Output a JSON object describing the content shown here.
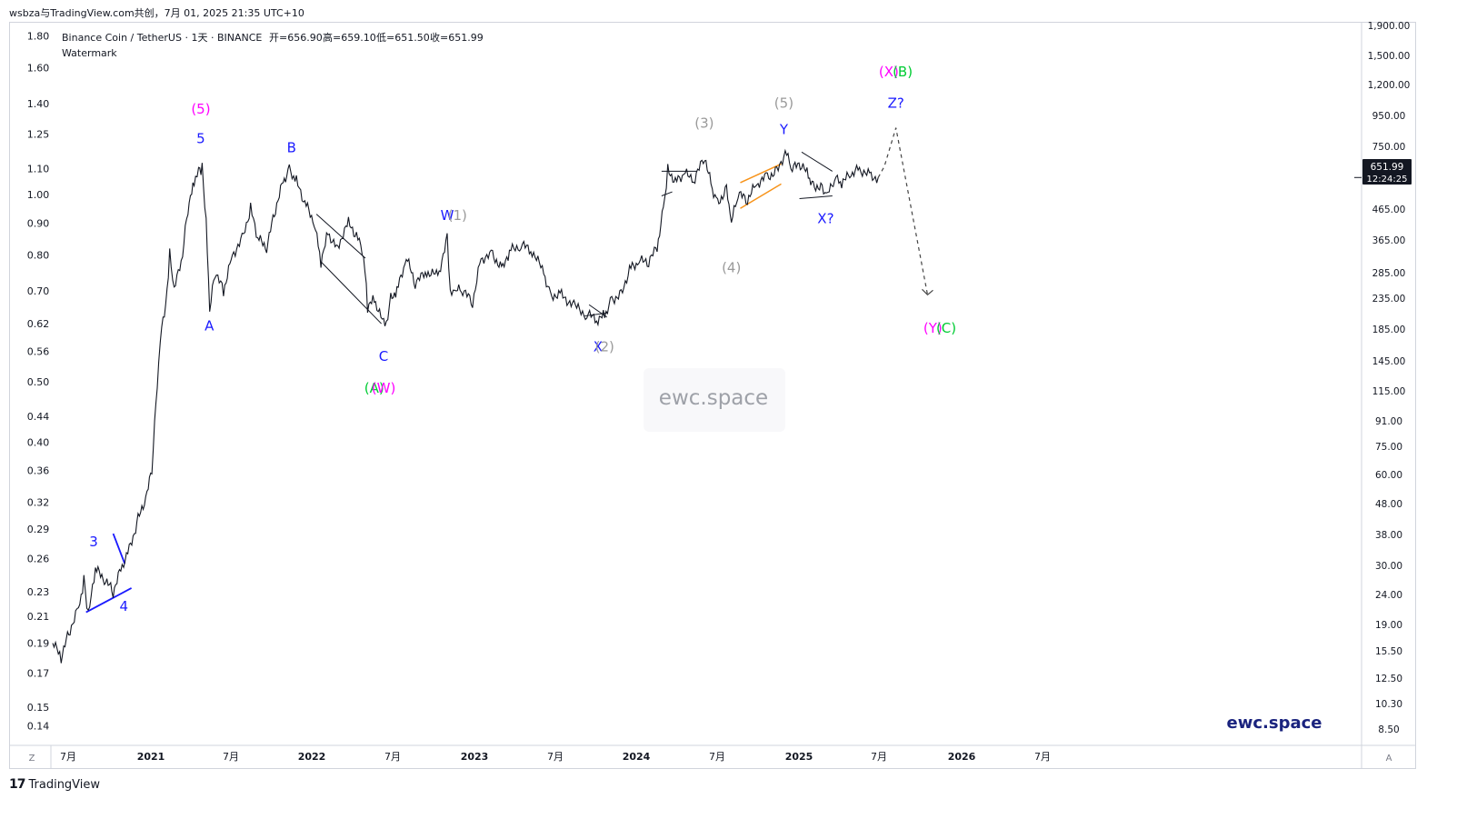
{
  "header": {
    "caption": "wsbza与TradingView.com共创，7月 01, 2025 21:35 UTC+10"
  },
  "legend": {
    "symbol": "Binance Coin / TetherUS · 1天 · BINANCE",
    "open": "开=656.90",
    "high": "高=659.10",
    "low": "低=651.50",
    "close": "收=651.99",
    "indicator": "Watermark"
  },
  "watermark": "ewc.space",
  "brand": "ewc.space",
  "footer": {
    "logo": "17",
    "label": "TradingView"
  },
  "price_badge": {
    "price": "651.99",
    "countdown": "12:24:25",
    "color": "#131722"
  },
  "axes": {
    "left_ticks": [
      "1.80",
      "1.60",
      "1.40",
      "1.25",
      "1.10",
      "1.00",
      "0.90",
      "0.80",
      "0.70",
      "0.62",
      "0.56",
      "0.50",
      "0.44",
      "0.40",
      "0.36",
      "0.32",
      "0.29",
      "0.26",
      "0.23",
      "0.21",
      "0.19",
      "0.17",
      "0.15",
      "0.14"
    ],
    "right_ticks": [
      "1,900.00",
      "1,500.00",
      "1,200.00",
      "950.00",
      "750.00",
      "465.00",
      "365.00",
      "285.00",
      "235.00",
      "185.00",
      "145.00",
      "115.00",
      "91.00",
      "75.00",
      "60.00",
      "48.00",
      "38.00",
      "30.00",
      "24.00",
      "19.00",
      "15.50",
      "12.50",
      "10.30",
      "8.50"
    ],
    "x_ticks": [
      "7月",
      "2021",
      "7月",
      "2022",
      "7月",
      "2023",
      "7月",
      "2024",
      "7月",
      "2025",
      "7月",
      "2026",
      "7月"
    ],
    "corner_left": "Z",
    "corner_right": "A"
  },
  "colors": {
    "price_line": "#131722",
    "blue_labels": "#1a1aff",
    "gray_labels": "#9a9a9a",
    "magenta_labels": "#ff00ff",
    "green_labels": "#00cc33",
    "orange_channel": "#f7931a",
    "brand_text": "#1a237e"
  },
  "chart_data": {
    "type": "line",
    "title": "Binance Coin / TetherUS · 1天 · BINANCE",
    "log_scale": true,
    "grid": false,
    "x_unit": "date",
    "series": [
      {
        "values": [
          [
            "2020-06-01",
            0.19
          ],
          [
            "2020-06-20",
            0.18
          ],
          [
            "2020-07-10",
            0.2
          ],
          [
            "2020-08-01",
            0.22
          ],
          [
            "2020-08-10",
            0.24
          ],
          [
            "2020-08-20",
            0.21
          ],
          [
            "2020-09-05",
            0.25
          ],
          [
            "2020-09-25",
            0.24
          ],
          [
            "2020-10-15",
            0.23
          ],
          [
            "2020-11-01",
            0.25
          ],
          [
            "2020-11-20",
            0.27
          ],
          [
            "2020-12-10",
            0.3
          ],
          [
            "2020-12-30",
            0.33
          ],
          [
            "2021-01-10",
            0.36
          ],
          [
            "2021-01-22",
            0.5
          ],
          [
            "2021-02-01",
            0.62
          ],
          [
            "2021-02-10",
            0.66
          ],
          [
            "2021-02-19",
            0.8
          ],
          [
            "2021-03-01",
            0.7
          ],
          [
            "2021-03-20",
            0.8
          ],
          [
            "2021-04-01",
            0.95
          ],
          [
            "2021-04-15",
            1.05
          ],
          [
            "2021-04-25",
            1.1
          ],
          [
            "2021-05-03",
            1.1
          ],
          [
            "2021-05-12",
            0.9
          ],
          [
            "2021-05-20",
            0.65
          ],
          [
            "2021-06-01",
            0.75
          ],
          [
            "2021-06-20",
            0.7
          ],
          [
            "2021-07-10",
            0.8
          ],
          [
            "2021-08-01",
            0.85
          ],
          [
            "2021-08-20",
            0.95
          ],
          [
            "2021-09-05",
            0.85
          ],
          [
            "2021-09-25",
            0.82
          ],
          [
            "2021-10-15",
            0.95
          ],
          [
            "2021-11-01",
            1.05
          ],
          [
            "2021-11-15",
            1.1
          ],
          [
            "2021-12-01",
            1.05
          ],
          [
            "2021-12-20",
            0.97
          ],
          [
            "2022-01-10",
            0.9
          ],
          [
            "2022-01-25",
            0.78
          ],
          [
            "2022-02-10",
            0.87
          ],
          [
            "2022-03-01",
            0.82
          ],
          [
            "2022-03-28",
            0.9
          ],
          [
            "2022-04-15",
            0.86
          ],
          [
            "2022-05-01",
            0.8
          ],
          [
            "2022-05-10",
            0.66
          ],
          [
            "2022-05-25",
            0.68
          ],
          [
            "2022-06-18",
            0.61
          ],
          [
            "2022-07-01",
            0.68
          ],
          [
            "2022-07-15",
            0.7
          ],
          [
            "2022-08-05",
            0.79
          ],
          [
            "2022-08-25",
            0.72
          ],
          [
            "2022-09-20",
            0.75
          ],
          [
            "2022-10-15",
            0.74
          ],
          [
            "2022-11-05",
            0.85
          ],
          [
            "2022-11-12",
            0.69
          ],
          [
            "2022-11-25",
            0.7
          ],
          [
            "2022-12-10",
            0.7
          ],
          [
            "2023-01-01",
            0.67
          ],
          [
            "2023-01-20",
            0.79
          ],
          [
            "2023-02-15",
            0.8
          ],
          [
            "2023-03-10",
            0.76
          ],
          [
            "2023-03-25",
            0.81
          ],
          [
            "2023-04-20",
            0.83
          ],
          [
            "2023-05-15",
            0.81
          ],
          [
            "2023-06-10",
            0.75
          ],
          [
            "2023-06-25",
            0.69
          ],
          [
            "2023-07-20",
            0.69
          ],
          [
            "2023-08-20",
            0.66
          ],
          [
            "2023-09-15",
            0.64
          ],
          [
            "2023-10-10",
            0.63
          ],
          [
            "2023-10-25",
            0.64
          ],
          [
            "2023-11-10",
            0.68
          ],
          [
            "2023-12-01",
            0.69
          ],
          [
            "2023-12-20",
            0.76
          ],
          [
            "2024-01-10",
            0.78
          ],
          [
            "2024-02-01",
            0.78
          ],
          [
            "2024-02-20",
            0.82
          ],
          [
            "2024-03-05",
            0.95
          ],
          [
            "2024-03-15",
            1.1
          ],
          [
            "2024-04-01",
            1.05
          ],
          [
            "2024-04-20",
            1.08
          ],
          [
            "2024-05-15",
            1.06
          ],
          [
            "2024-06-06",
            1.15
          ],
          [
            "2024-06-20",
            1.04
          ],
          [
            "2024-07-05",
            0.97
          ],
          [
            "2024-07-25",
            1.02
          ],
          [
            "2024-08-05",
            0.9
          ],
          [
            "2024-08-20",
            1.0
          ],
          [
            "2024-09-10",
            0.98
          ],
          [
            "2024-10-01",
            1.04
          ],
          [
            "2024-10-25",
            1.07
          ],
          [
            "2024-11-15",
            1.09
          ],
          [
            "2024-12-04",
            1.17
          ],
          [
            "2024-12-20",
            1.1
          ],
          [
            "2025-01-10",
            1.12
          ],
          [
            "2025-01-25",
            1.07
          ],
          [
            "2025-02-05",
            1.04
          ],
          [
            "2025-02-25",
            1.02
          ],
          [
            "2025-03-10",
            1.0
          ],
          [
            "2025-03-25",
            1.06
          ],
          [
            "2025-04-10",
            1.04
          ],
          [
            "2025-05-01",
            1.08
          ],
          [
            "2025-05-20",
            1.1
          ],
          [
            "2025-06-15",
            1.07
          ],
          [
            "2025-07-01",
            1.065
          ]
        ]
      },
      {
        "style": "dashed",
        "values": [
          [
            "2025-07-01",
            1.065
          ],
          [
            "2025-07-15",
            1.11
          ],
          [
            "2025-08-10",
            1.28
          ],
          [
            "2025-10-20",
            0.69
          ]
        ]
      }
    ],
    "wave_labels": [
      {
        "text": "3",
        "color": "blue",
        "date": "2020-09-01",
        "price": 0.272
      },
      {
        "text": "4",
        "color": "blue",
        "date": "2020-11-08",
        "price": 0.214
      },
      {
        "text": "(5)",
        "color": "magenta",
        "date": "2021-04-30",
        "price": 1.35
      },
      {
        "text": "5",
        "color": "blue",
        "date": "2021-04-30",
        "price": 1.21
      },
      {
        "text": "A",
        "color": "blue",
        "date": "2021-05-19",
        "price": 0.605
      },
      {
        "text": "B",
        "color": "blue",
        "date": "2021-11-20",
        "price": 1.17
      },
      {
        "text": "C",
        "color": "blue",
        "date": "2022-06-15",
        "price": 0.54
      },
      {
        "text": "(A)",
        "color": "green",
        "date": "2022-05-25",
        "price": 0.48
      },
      {
        "text": "(W)",
        "color": "magenta",
        "date": "2022-06-15",
        "price": 0.48
      },
      {
        "text": "W",
        "color": "blue",
        "date": "2022-11-05",
        "price": 0.91
      },
      {
        "text": "(1)",
        "color": "gray",
        "date": "2022-11-28",
        "price": 0.91
      },
      {
        "text": "X",
        "color": "blue",
        "date": "2023-10-10",
        "price": 0.56
      },
      {
        "text": "(2)",
        "color": "gray",
        "date": "2023-10-25",
        "price": 0.56
      },
      {
        "text": "(3)",
        "color": "gray",
        "date": "2024-06-05",
        "price": 1.28
      },
      {
        "text": "(4)",
        "color": "gray",
        "date": "2024-08-05",
        "price": 0.75
      },
      {
        "text": "(5)",
        "color": "gray",
        "date": "2024-12-01",
        "price": 1.38
      },
      {
        "text": "Y",
        "color": "blue",
        "date": "2024-12-01",
        "price": 1.25
      },
      {
        "text": "X?",
        "color": "blue",
        "date": "2025-03-05",
        "price": 0.9
      },
      {
        "text": "(X)",
        "color": "magenta",
        "date": "2025-07-25",
        "price": 1.55
      },
      {
        "text": "(B)",
        "color": "green",
        "date": "2025-08-25",
        "price": 1.55
      },
      {
        "text": "Z?",
        "color": "blue",
        "date": "2025-08-10",
        "price": 1.38
      },
      {
        "text": "(Y)",
        "color": "magenta",
        "date": "2025-11-01",
        "price": 0.6
      },
      {
        "text": "(C)",
        "color": "green",
        "date": "2025-12-01",
        "price": 0.6
      }
    ]
  }
}
